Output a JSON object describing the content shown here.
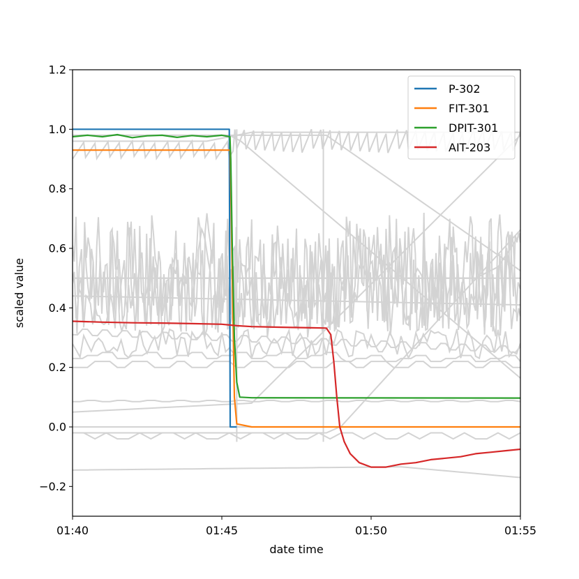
{
  "chart_data": {
    "type": "line",
    "title": "",
    "xlabel": "date time",
    "ylabel": "scaled value",
    "x_tick_labels": [
      "01:40",
      "01:45",
      "01:50",
      "01:55"
    ],
    "x_tick_minutes": [
      0,
      5,
      10,
      15
    ],
    "xlim_minutes": [
      0,
      15
    ],
    "ylim": [
      -0.3,
      1.2
    ],
    "y_ticks": [
      -0.2,
      0.0,
      0.2,
      0.4,
      0.6,
      0.8,
      1.0,
      1.2
    ],
    "y_tick_labels": [
      "−0.2",
      "0.0",
      "0.2",
      "0.4",
      "0.6",
      "0.8",
      "1.0",
      "1.2"
    ],
    "grid": false,
    "legend_position": "top-right",
    "series": [
      {
        "name": "P-302",
        "color": "#1f77b4",
        "points": [
          [
            0,
            1.0
          ],
          [
            5.25,
            1.0
          ],
          [
            5.28,
            0.0
          ],
          [
            5.5,
            0.0
          ]
        ]
      },
      {
        "name": "FIT-301",
        "color": "#ff7f0e",
        "points": [
          [
            0,
            0.93
          ],
          [
            5.28,
            0.93
          ],
          [
            5.35,
            0.5
          ],
          [
            5.42,
            0.1
          ],
          [
            5.5,
            0.01
          ],
          [
            6.0,
            0.0
          ],
          [
            15.0,
            0.0
          ]
        ]
      },
      {
        "name": "DPIT-301",
        "color": "#2ca02c",
        "points": [
          [
            0,
            0.975
          ],
          [
            0.5,
            0.98
          ],
          [
            1.0,
            0.975
          ],
          [
            1.5,
            0.982
          ],
          [
            2.0,
            0.972
          ],
          [
            2.5,
            0.978
          ],
          [
            3.0,
            0.98
          ],
          [
            3.5,
            0.973
          ],
          [
            4.0,
            0.979
          ],
          [
            4.5,
            0.975
          ],
          [
            5.0,
            0.98
          ],
          [
            5.27,
            0.975
          ],
          [
            5.3,
            0.9
          ],
          [
            5.35,
            0.6
          ],
          [
            5.42,
            0.3
          ],
          [
            5.5,
            0.15
          ],
          [
            5.6,
            0.1
          ],
          [
            6.0,
            0.098
          ],
          [
            15.0,
            0.097
          ]
        ]
      },
      {
        "name": "AIT-203",
        "color": "#d62728",
        "points": [
          [
            0,
            0.355
          ],
          [
            1.0,
            0.352
          ],
          [
            2.0,
            0.35
          ],
          [
            3.0,
            0.349
          ],
          [
            4.0,
            0.347
          ],
          [
            5.0,
            0.345
          ],
          [
            5.5,
            0.34
          ],
          [
            6.0,
            0.337
          ],
          [
            7.0,
            0.335
          ],
          [
            8.0,
            0.333
          ],
          [
            8.5,
            0.332
          ],
          [
            8.65,
            0.31
          ],
          [
            8.75,
            0.22
          ],
          [
            8.85,
            0.1
          ],
          [
            8.95,
            0.0
          ],
          [
            9.1,
            -0.05
          ],
          [
            9.3,
            -0.09
          ],
          [
            9.6,
            -0.12
          ],
          [
            10.0,
            -0.135
          ],
          [
            10.5,
            -0.135
          ],
          [
            11.0,
            -0.125
          ],
          [
            11.5,
            -0.12
          ],
          [
            12.0,
            -0.11
          ],
          [
            12.5,
            -0.105
          ],
          [
            13.0,
            -0.1
          ],
          [
            13.5,
            -0.09
          ],
          [
            14.0,
            -0.085
          ],
          [
            14.5,
            -0.08
          ],
          [
            15.0,
            -0.075
          ]
        ]
      }
    ],
    "background_series_color": "#d3d3d3"
  }
}
